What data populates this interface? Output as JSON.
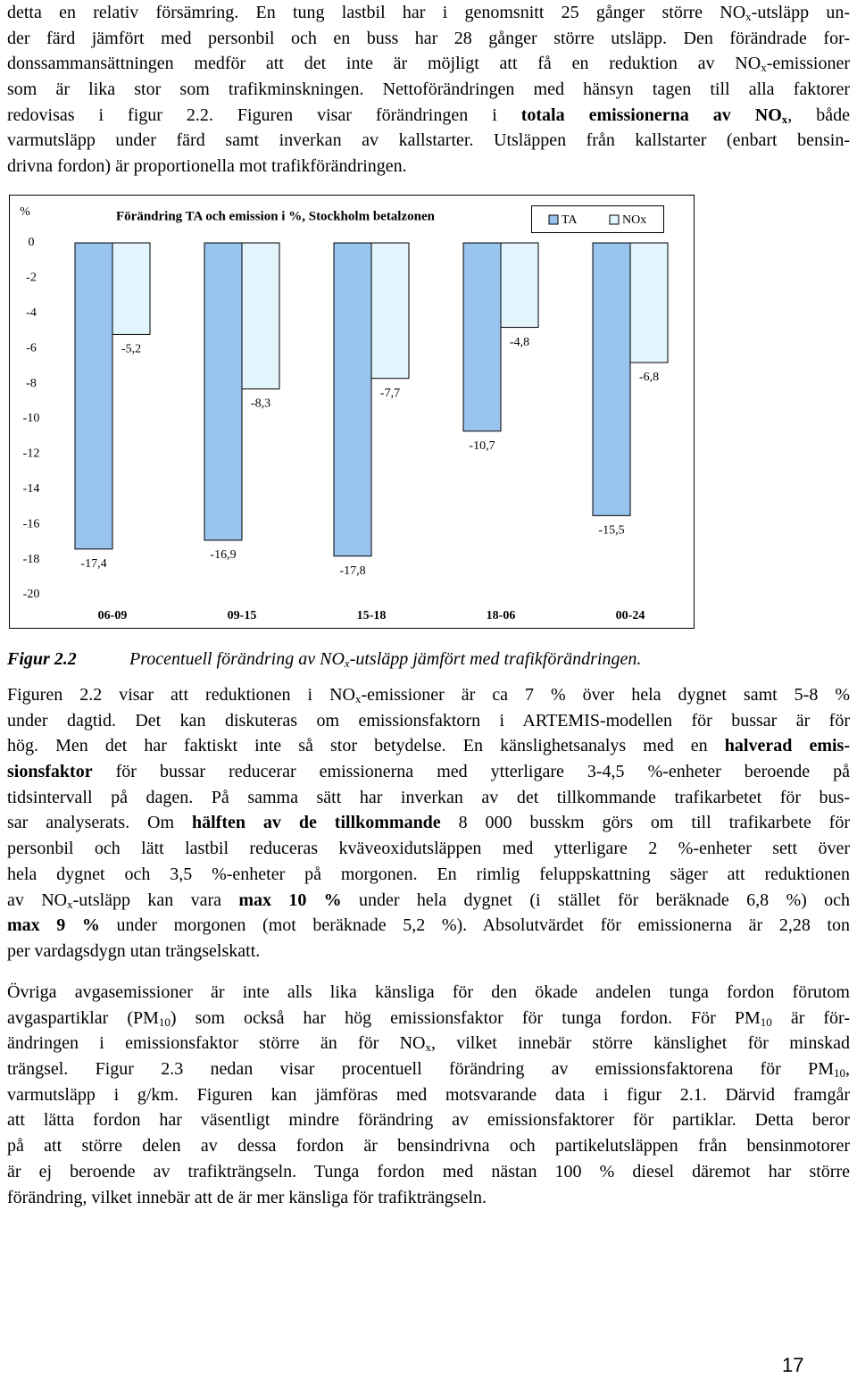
{
  "paragraphs": [
    {
      "lines": [
        [
          "detta en relativ försämring. En tung lastbil har i genomsnitt 25 gånger större NO",
          {
            "text": "x",
            "style": "sub"
          },
          "-utsläpp un-"
        ],
        [
          "der färd jämfört med personbil och en buss har 28 gånger större utsläpp. Den förändrade for-"
        ],
        [
          "donssammansättningen medför att det inte är möjligt att få en reduktion av NO",
          {
            "text": "x",
            "style": "sub"
          },
          "-emissioner"
        ],
        [
          "som är lika stor som trafikminskningen. Nettoförändringen med hänsyn tagen till alla faktorer"
        ],
        [
          "redovisas i figur 2.2. Figuren visar förändringen i ",
          {
            "text": "totala emissionerna av NO",
            "style": "bold"
          },
          {
            "text": "x",
            "style": "bold-sub"
          },
          ", både"
        ],
        [
          "varmutsläpp under färd samt inverkan av kallstarter. Utsläppen från kallstarter (enbart bensin-"
        ],
        [
          "drivna fordon) är proportionella mot trafikförändringen."
        ]
      ]
    },
    {
      "lines": [
        [
          "Figuren 2.2 visar att reduktionen i NO",
          {
            "text": "x",
            "style": "sub"
          },
          "-emissioner är ca 7 % över hela dygnet samt 5-8 %"
        ],
        [
          "under dagtid. Det kan diskuteras om emissionsfaktorn i ARTEMIS-modellen för bussar är för"
        ],
        [
          "hög. Men det har faktiskt inte så stor betydelse. En känslighetsanalys med en ",
          {
            "text": "halverad emis-",
            "style": "bold"
          }
        ],
        [
          {
            "text": "sionsfaktor",
            "style": "bold"
          },
          " för bussar reducerar emissionerna med ytterligare 3-4,5 %-enheter beroende på"
        ],
        [
          "tidsintervall på dagen. På samma sätt har inverkan av det tillkommande trafikarbetet för bus-"
        ],
        [
          "sar analyserats. Om ",
          {
            "text": "hälften av de tillkommande",
            "style": "bold"
          },
          " 8 000 busskm görs om till trafikarbete för"
        ],
        [
          "personbil och lätt lastbil reduceras kväveoxidutsläppen med ytterligare 2 %-enheter sett över"
        ],
        [
          "hela dygnet och 3,5 %-enheter på morgonen. En rimlig feluppskattning säger att reduktionen"
        ],
        [
          "av NO",
          {
            "text": "x",
            "style": "sub"
          },
          "-utsläpp kan vara ",
          {
            "text": "max 10 %",
            "style": "bold"
          },
          " under hela dygnet (i stället för beräknade 6,8 %) och"
        ],
        [
          {
            "text": "max 9 %",
            "style": "bold"
          },
          " under morgonen (mot beräknade 5,2 %). Absolutvärdet för emissionerna är 2,28 ton"
        ],
        [
          "per vardagsdygn utan trängselskatt."
        ]
      ]
    },
    {
      "lines": [
        [
          "Övriga avgasemissioner är inte alls lika känsliga för den ökade andelen tunga fordon förutom"
        ],
        [
          "avgaspartiklar (PM",
          {
            "text": "10",
            "style": "sub"
          },
          ") som också har hög emissionsfaktor för tunga fordon. För PM",
          {
            "text": "10",
            "style": "sub"
          },
          " är för-"
        ],
        [
          "ändringen i emissionsfaktor större än för NO",
          {
            "text": "x",
            "style": "sub"
          },
          ", vilket innebär större känslighet för minskad"
        ],
        [
          "trängsel. Figur 2.3 nedan visar procentuell förändring av emissionsfaktorena för PM",
          {
            "text": "10",
            "style": "sub"
          },
          ","
        ],
        [
          "varmutsläpp i g/km. Figuren kan jämföras med motsvarande data i figur 2.1. Därvid framgår"
        ],
        [
          "att lätta fordon har väsentligt mindre förändring av emissionsfaktorer för partiklar. Detta beror"
        ],
        [
          "på att större delen av dessa fordon är bensindrivna och partikelutsläppen från bensinmotorer"
        ],
        [
          "är ej beroende av trafikträngseln. Tunga fordon med nästan 100 % diesel däremot har större"
        ],
        [
          "förändring, vilket innebär att de är mer känsliga för trafikträngseln."
        ]
      ]
    }
  ],
  "chart_data": {
    "type": "bar",
    "title": "Förändring TA och emission i %, Stockholm betalzonen",
    "y_label": "%",
    "categories": [
      "06-09",
      "09-15",
      "15-18",
      "18-06",
      "00-24"
    ],
    "series": [
      {
        "name": "TA",
        "color": "#99c4ef",
        "values": [
          -17.4,
          -16.9,
          -17.8,
          -10.7,
          -15.5
        ],
        "value_labels": [
          "-17,4",
          "-16,9",
          "-17,8",
          "-10,7",
          "-15,5"
        ]
      },
      {
        "name": "NOx",
        "color": "#e2f5fc",
        "values": [
          -5.2,
          -8.3,
          -7.7,
          -4.8,
          -6.8
        ],
        "value_labels": [
          "-5,2",
          "-8,3",
          "-7,7",
          "-4,8",
          "-6,8"
        ]
      }
    ],
    "ylim": [
      -20,
      0
    ],
    "yticks": [
      0,
      -2,
      -4,
      -6,
      -8,
      -10,
      -12,
      -14,
      -16,
      -18,
      -20
    ],
    "grid": false
  },
  "caption": {
    "label": "Figur 2.2",
    "runs": [
      "Procentuell förändring av NO",
      {
        "text": "x",
        "style": "sub"
      },
      "-utsläpp jämfört med trafikförändringen."
    ]
  },
  "page_number": "17"
}
